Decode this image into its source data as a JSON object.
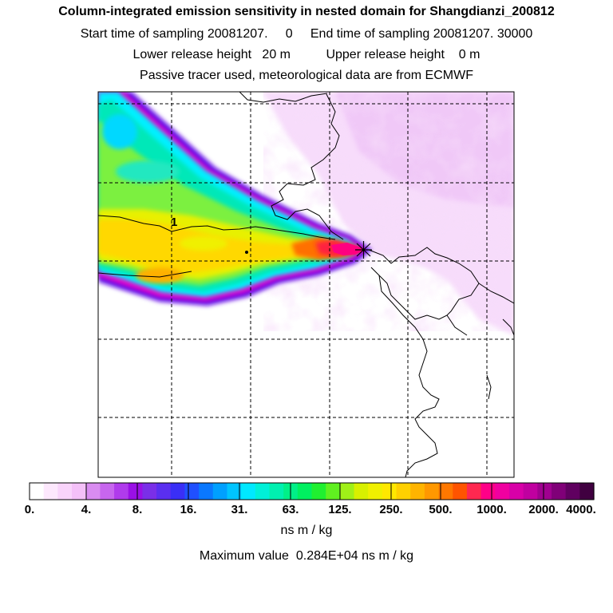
{
  "header": {
    "title": "Column-integrated emission sensitivity in nested domain for Shangdianzi_200812",
    "sampling_start_label": "Start time of sampling",
    "sampling_start_value": "20081207.     0",
    "sampling_end_label": "End time of sampling",
    "sampling_end_value": "20081207. 30000",
    "lower_release_label": "Lower release height",
    "lower_release_value": "20 m",
    "upper_release_label": "Upper release height",
    "upper_release_value": "0 m",
    "tracer_note": "Passive tracer used, meteorological data are from ECMWF"
  },
  "map": {
    "site_label": "1",
    "release_marker": "star-cross-icon",
    "plume_peak_color": "#ff1070",
    "background_tint": "#f0c8f8"
  },
  "colorbar": {
    "tick_labels": [
      "0.",
      "4.",
      "8.",
      "16.",
      "31.",
      "63.",
      "125.",
      "250.",
      "500.",
      "1000.",
      "2000.",
      "4000."
    ],
    "colors": [
      "#ffffff",
      "#fde8fd",
      "#f9d4fb",
      "#f4c0f8",
      "#d98cf1",
      "#c766ee",
      "#b03bec",
      "#9a10e6",
      "#7a2fe8",
      "#5a2ff0",
      "#3a2ff6",
      "#2050ff",
      "#0a78ff",
      "#00a0ff",
      "#00c4ff",
      "#00e8ff",
      "#00f0d8",
      "#00f0b0",
      "#00f088",
      "#00f060",
      "#20f030",
      "#60f020",
      "#a0f018",
      "#d8f000",
      "#f0f000",
      "#ffe800",
      "#ffd000",
      "#ffb400",
      "#ff9800",
      "#ff7800",
      "#ff5400",
      "#ff2850",
      "#ff0088",
      "#f000a0",
      "#d800a8",
      "#c000a0",
      "#a00090",
      "#800078",
      "#600060",
      "#400040"
    ],
    "units": "ns m / kg"
  },
  "footer": {
    "max_label": "Maximum value",
    "max_value": "0.284E+04",
    "max_units": "ns m / kg"
  }
}
